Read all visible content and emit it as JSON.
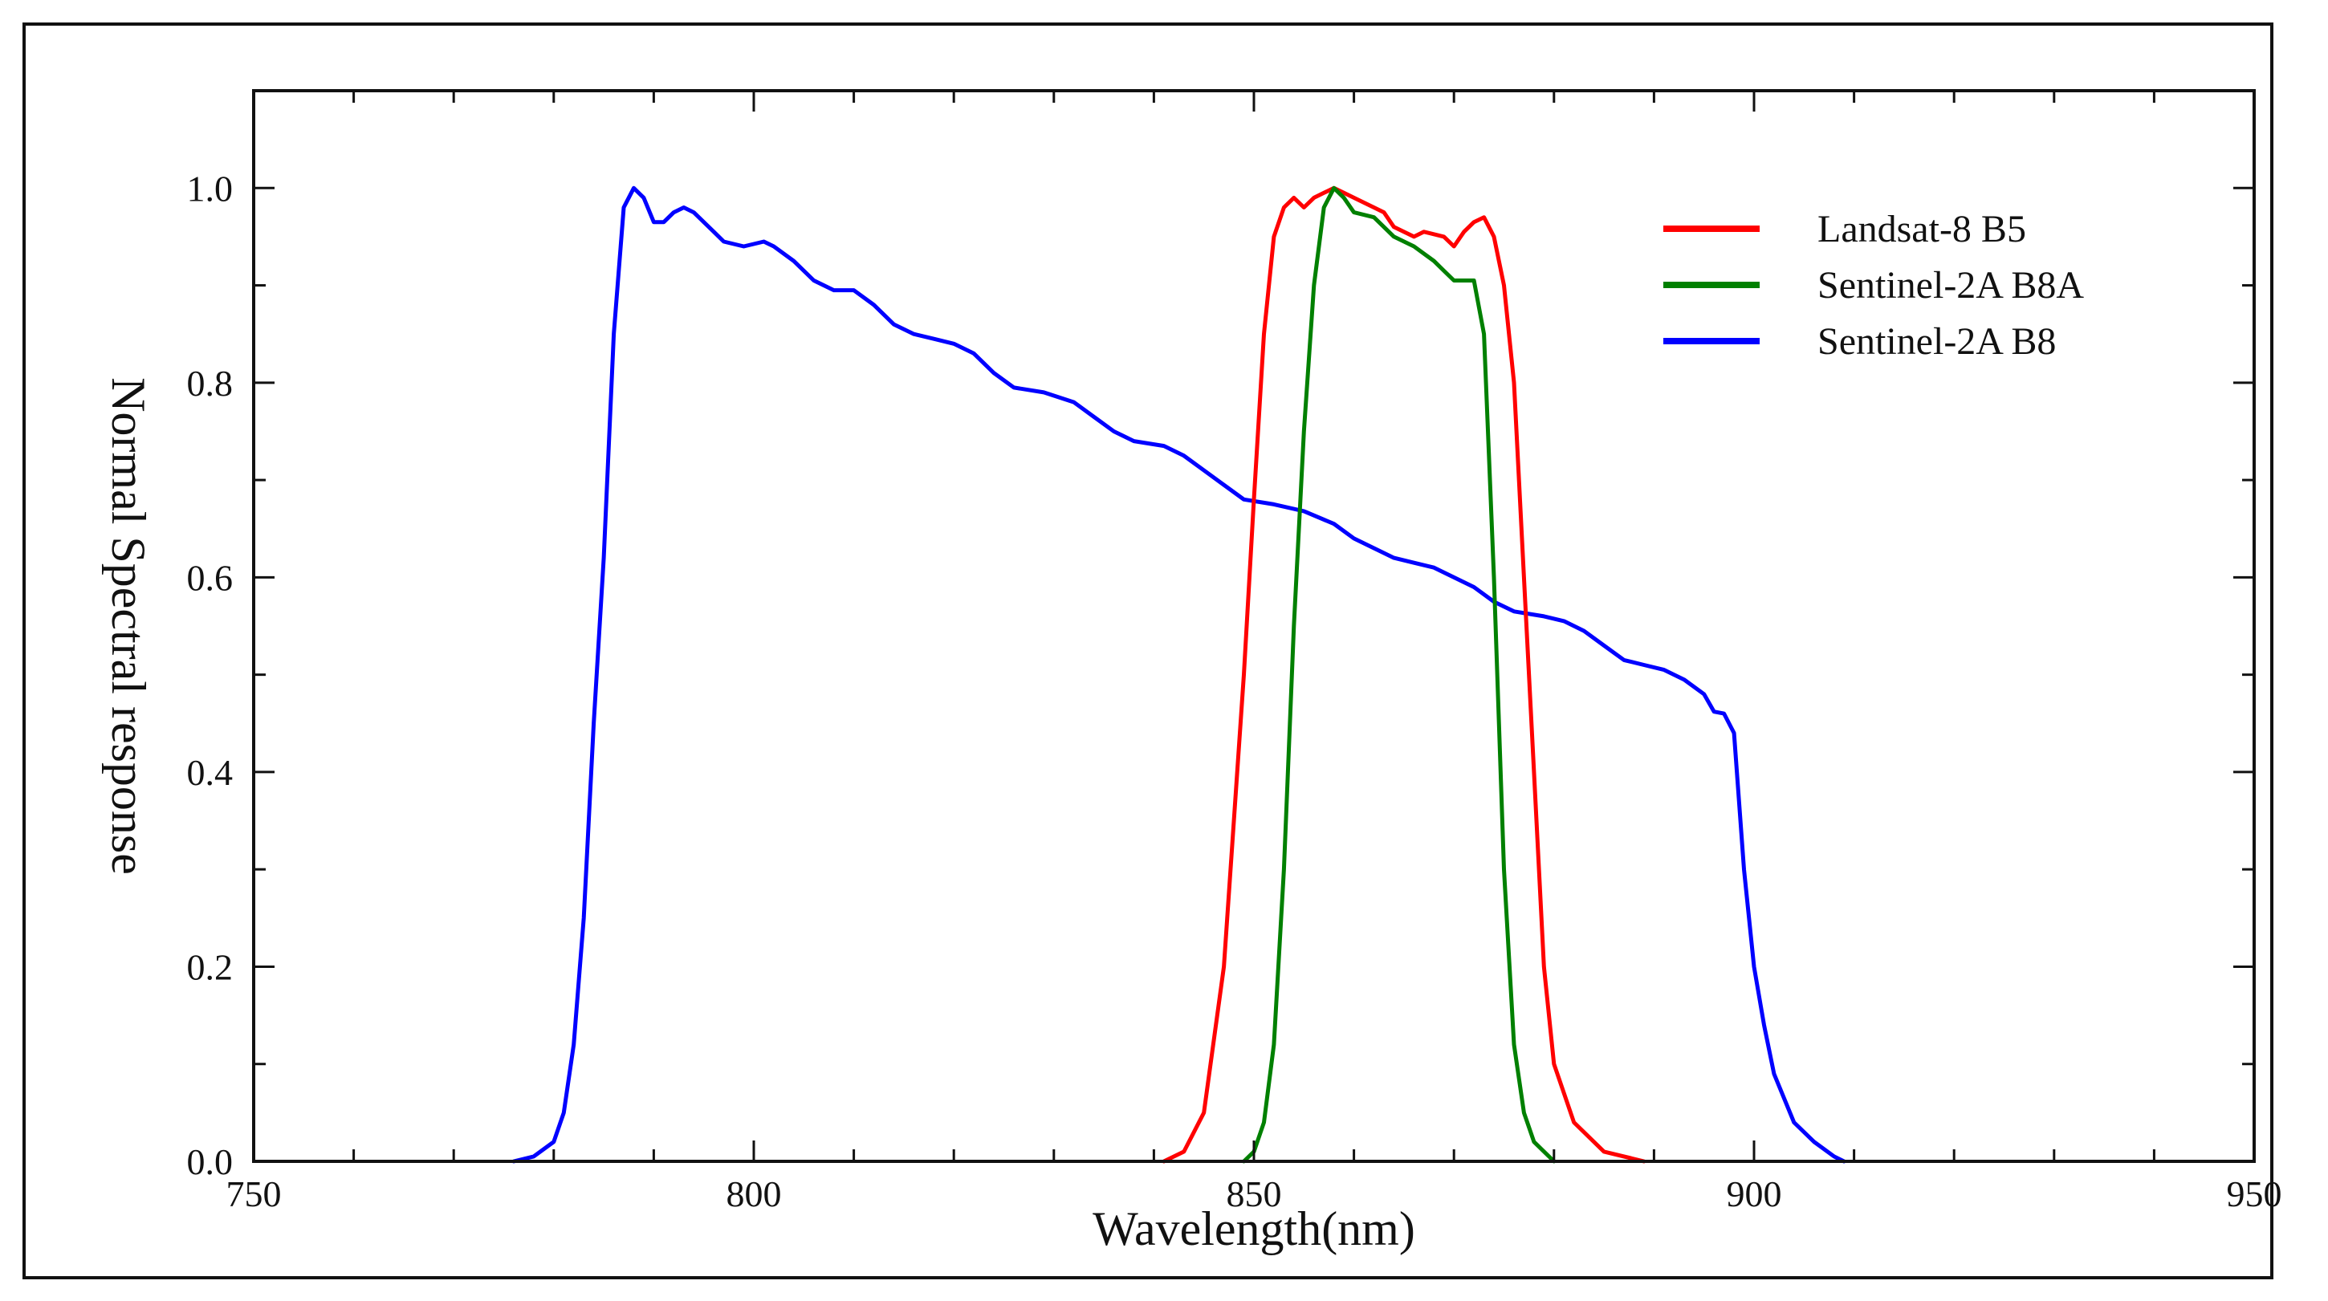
{
  "chart_data": {
    "type": "line",
    "title": "",
    "xlabel": "Wavelength(nm)",
    "ylabel": "Normal Spectral response",
    "xlim": [
      750,
      950
    ],
    "ylim": [
      0,
      1.1
    ],
    "x_ticks": [
      750,
      800,
      850,
      900,
      950
    ],
    "x_tick_labels": [
      "750",
      "800",
      "850",
      "900",
      "950"
    ],
    "y_ticks": [
      0,
      0.2,
      0.4,
      0.6,
      0.8,
      1.0
    ],
    "y_tick_labels": [
      "0.0",
      "0.2",
      "0.4",
      "0.6",
      "0.8",
      "1.0"
    ],
    "grid": false,
    "legend_position": "top-right",
    "series": [
      {
        "name": "Landsat-8 B5",
        "color": "#ff0000",
        "points": [
          [
            841,
            0
          ],
          [
            843,
            0.01
          ],
          [
            845,
            0.05
          ],
          [
            847,
            0.2
          ],
          [
            849,
            0.5
          ],
          [
            850,
            0.68
          ],
          [
            851,
            0.85
          ],
          [
            852,
            0.95
          ],
          [
            853,
            0.98
          ],
          [
            854,
            0.99
          ],
          [
            855,
            0.98
          ],
          [
            856,
            0.99
          ],
          [
            857,
            0.995
          ],
          [
            858,
            1.0
          ],
          [
            859,
            0.995
          ],
          [
            860,
            0.99
          ],
          [
            862,
            0.98
          ],
          [
            863,
            0.975
          ],
          [
            864,
            0.96
          ],
          [
            866,
            0.95
          ],
          [
            867,
            0.955
          ],
          [
            869,
            0.95
          ],
          [
            870,
            0.94
          ],
          [
            871,
            0.955
          ],
          [
            872,
            0.965
          ],
          [
            873,
            0.97
          ],
          [
            874,
            0.95
          ],
          [
            875,
            0.9
          ],
          [
            876,
            0.8
          ],
          [
            877,
            0.6
          ],
          [
            878,
            0.4
          ],
          [
            879,
            0.2
          ],
          [
            880,
            0.1
          ],
          [
            882,
            0.04
          ],
          [
            885,
            0.01
          ],
          [
            889,
            0
          ]
        ]
      },
      {
        "name": "Sentinel-2A B8A",
        "color": "#008000",
        "points": [
          [
            849,
            0
          ],
          [
            850,
            0.01
          ],
          [
            851,
            0.04
          ],
          [
            852,
            0.12
          ],
          [
            853,
            0.3
          ],
          [
            854,
            0.55
          ],
          [
            855,
            0.75
          ],
          [
            856,
            0.9
          ],
          [
            857,
            0.98
          ],
          [
            858,
            1.0
          ],
          [
            859,
            0.99
          ],
          [
            860,
            0.975
          ],
          [
            862,
            0.97
          ],
          [
            864,
            0.95
          ],
          [
            866,
            0.94
          ],
          [
            868,
            0.925
          ],
          [
            869,
            0.915
          ],
          [
            870,
            0.905
          ],
          [
            872,
            0.905
          ],
          [
            873,
            0.85
          ],
          [
            874,
            0.6
          ],
          [
            875,
            0.3
          ],
          [
            876,
            0.12
          ],
          [
            877,
            0.05
          ],
          [
            878,
            0.02
          ],
          [
            880,
            0
          ]
        ]
      },
      {
        "name": "Sentinel-2A B8",
        "color": "#0000ff",
        "points": [
          [
            776,
            0
          ],
          [
            778,
            0.005
          ],
          [
            780,
            0.02
          ],
          [
            781,
            0.05
          ],
          [
            782,
            0.12
          ],
          [
            783,
            0.25
          ],
          [
            784,
            0.45
          ],
          [
            785,
            0.62
          ],
          [
            786,
            0.85
          ],
          [
            787,
            0.98
          ],
          [
            788,
            1.0
          ],
          [
            789,
            0.99
          ],
          [
            790,
            0.965
          ],
          [
            791,
            0.965
          ],
          [
            792,
            0.975
          ],
          [
            793,
            0.98
          ],
          [
            794,
            0.975
          ],
          [
            796,
            0.955
          ],
          [
            797,
            0.945
          ],
          [
            799,
            0.94
          ],
          [
            801,
            0.945
          ],
          [
            802,
            0.94
          ],
          [
            804,
            0.925
          ],
          [
            806,
            0.905
          ],
          [
            808,
            0.895
          ],
          [
            810,
            0.895
          ],
          [
            812,
            0.88
          ],
          [
            814,
            0.86
          ],
          [
            816,
            0.85
          ],
          [
            818,
            0.845
          ],
          [
            820,
            0.84
          ],
          [
            822,
            0.83
          ],
          [
            824,
            0.81
          ],
          [
            826,
            0.795
          ],
          [
            829,
            0.79
          ],
          [
            832,
            0.78
          ],
          [
            834,
            0.765
          ],
          [
            836,
            0.75
          ],
          [
            838,
            0.74
          ],
          [
            841,
            0.735
          ],
          [
            843,
            0.725
          ],
          [
            845,
            0.71
          ],
          [
            847,
            0.695
          ],
          [
            849,
            0.68
          ],
          [
            852,
            0.675
          ],
          [
            855,
            0.668
          ],
          [
            858,
            0.655
          ],
          [
            860,
            0.64
          ],
          [
            862,
            0.63
          ],
          [
            864,
            0.62
          ],
          [
            866,
            0.615
          ],
          [
            868,
            0.61
          ],
          [
            870,
            0.6
          ],
          [
            872,
            0.59
          ],
          [
            874,
            0.575
          ],
          [
            876,
            0.565
          ],
          [
            879,
            0.56
          ],
          [
            881,
            0.555
          ],
          [
            883,
            0.545
          ],
          [
            885,
            0.53
          ],
          [
            887,
            0.515
          ],
          [
            889,
            0.51
          ],
          [
            891,
            0.505
          ],
          [
            893,
            0.495
          ],
          [
            895,
            0.48
          ],
          [
            896,
            0.462
          ],
          [
            897,
            0.46
          ],
          [
            898,
            0.44
          ],
          [
            899,
            0.3
          ],
          [
            900,
            0.2
          ],
          [
            901,
            0.14
          ],
          [
            902,
            0.09
          ],
          [
            904,
            0.04
          ],
          [
            906,
            0.02
          ],
          [
            908,
            0.005
          ],
          [
            909,
            0
          ]
        ]
      }
    ]
  }
}
